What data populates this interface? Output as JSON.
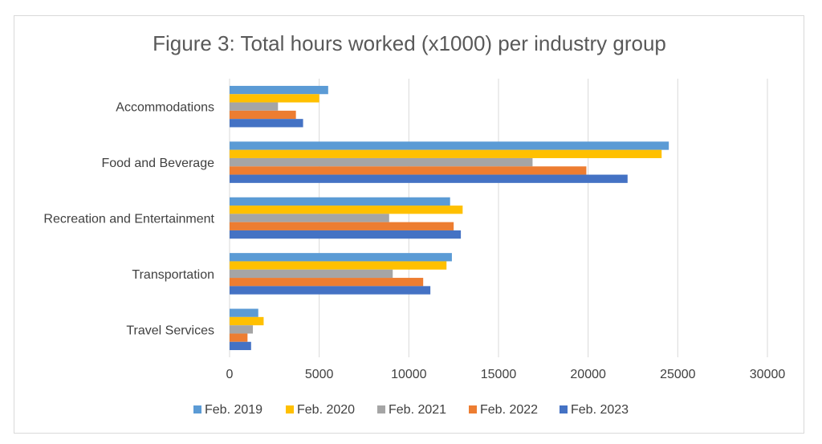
{
  "chart_data": {
    "type": "bar",
    "orientation": "horizontal",
    "title": "Figure 3: Total hours worked (x1000) per industry group",
    "categories": [
      "Accommodations",
      "Food and Beverage",
      "Recreation and Entertainment",
      "Transportation",
      "Travel Services"
    ],
    "series": [
      {
        "name": "Feb. 2019",
        "color": "#5b9bd5",
        "values": [
          5500,
          24500,
          12300,
          12400,
          1600
        ]
      },
      {
        "name": "Feb. 2020",
        "color": "#ffc000",
        "values": [
          5000,
          24100,
          13000,
          12100,
          1900
        ]
      },
      {
        "name": "Feb. 2021",
        "color": "#a5a5a5",
        "values": [
          2700,
          16900,
          8900,
          9100,
          1300
        ]
      },
      {
        "name": "Feb. 2022",
        "color": "#ed7d31",
        "values": [
          3700,
          19900,
          12500,
          10800,
          1000
        ]
      },
      {
        "name": "Feb. 2023",
        "color": "#4472c4",
        "values": [
          4100,
          22200,
          12900,
          11200,
          1200
        ]
      }
    ],
    "xlim": [
      0,
      30000
    ],
    "ticks": [
      "0",
      "5000",
      "10000",
      "15000",
      "20000",
      "25000",
      "30000"
    ],
    "grid": true,
    "legend_position": "bottom"
  }
}
